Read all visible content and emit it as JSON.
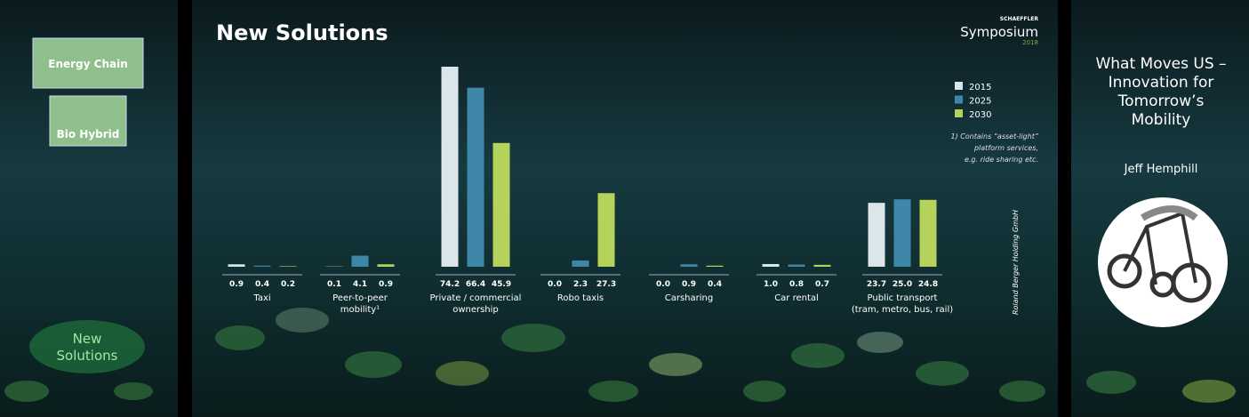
{
  "sidebar": {
    "items": [
      "Energy Chain",
      "Bio Hybrid"
    ],
    "current": "New\nSolutions"
  },
  "header": {
    "brand_small": "SCHAEFFLER",
    "brand": "Symposium",
    "year": "2018"
  },
  "chart_data": {
    "type": "bar",
    "title": "New Solutions",
    "categories": [
      "Taxi",
      "Peer-to-peer\nmobility¹",
      "Private / commercial\nownership",
      "Robo taxis",
      "Carsharing",
      "Car rental",
      "Public transport\n(tram, metro, bus, rail)"
    ],
    "series": [
      {
        "name": "2015",
        "color": "#dbe6ea",
        "values": [
          0.9,
          0.1,
          74.2,
          0,
          0,
          1,
          23.7
        ],
        "value_labels": [
          "0.9",
          "0.1",
          "74.2",
          "0.0",
          "0.0",
          "1.0",
          "23.7"
        ]
      },
      {
        "name": "2025",
        "color": "#3f87a8",
        "values": [
          0.4,
          4.1,
          66.4,
          2.3,
          0.9,
          0.8,
          25
        ],
        "value_labels": [
          "0.4",
          "4.1",
          "66.4",
          "2.3",
          "0.9",
          "0.8",
          "25.0"
        ]
      },
      {
        "name": "2030",
        "color": "#b5d35a",
        "values": [
          0.2,
          0.9,
          45.9,
          27.3,
          0.4,
          0.7,
          24.8
        ],
        "value_labels": [
          "0.2",
          "0.9",
          "45.9",
          "27.3",
          "0.4",
          "0.7",
          "24.8"
        ]
      }
    ],
    "legend": "top-right",
    "footnote": "1)   Contains “asset-light”\nplatform services,\ne.g. ride sharing etc.",
    "source": "Roland Berger Holding GmbH"
  },
  "presenter": {
    "talk_title": "What Moves US –\nInnovation for\nTomorrow’s\nMobility",
    "speaker": "Jeff Hemphill"
  }
}
